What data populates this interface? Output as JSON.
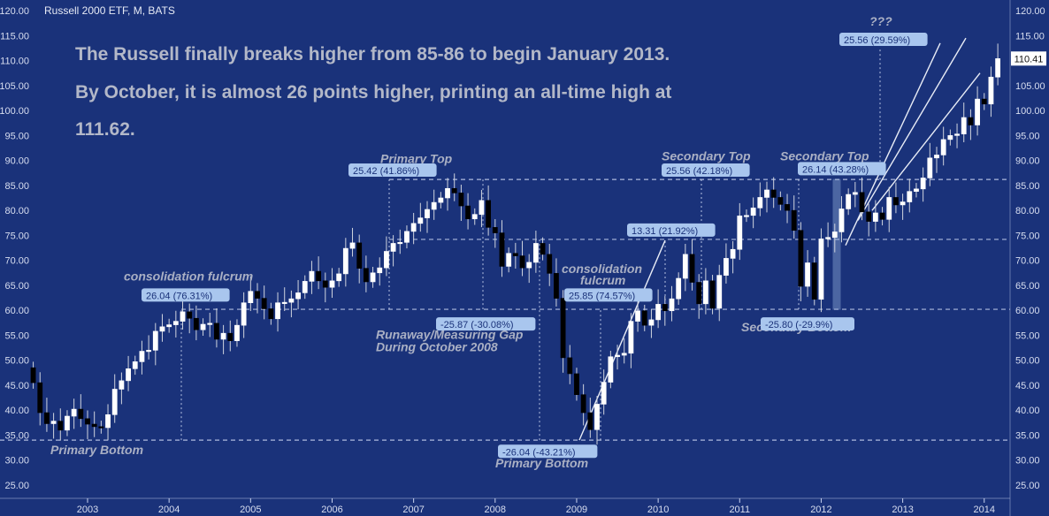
{
  "chart_data": {
    "type": "candlestick",
    "title": "Russell 2000 ETF, M, BATS",
    "headline": [
      "The Russell finally breaks higher from 85-86 to begin January 2013.",
      "By October, it is almost 26 points higher, printing an all-time high at",
      "111.62."
    ],
    "x_ticks": [
      "2003",
      "2004",
      "2005",
      "2006",
      "2007",
      "2008",
      "2009",
      "2010",
      "2011",
      "2012",
      "2013",
      "2014"
    ],
    "y_ticks": [
      "25.00",
      "30.00",
      "35.00",
      "40.00",
      "45.00",
      "50.00",
      "55.00",
      "60.00",
      "65.00",
      "70.00",
      "75.00",
      "80.00",
      "85.00",
      "90.00",
      "95.00",
      "100.00",
      "105.00",
      "110.00",
      "115.00",
      "120.00"
    ],
    "ylim": [
      22,
      120.5
    ],
    "last_price": "110.41",
    "horizontal_levels": [
      34,
      60.2,
      74.2,
      86.2
    ],
    "series": {
      "start": "2002-05",
      "closes": [
        45.5,
        39.5,
        37.3,
        37.8,
        36.0,
        38.8,
        40.2,
        38.3,
        37.2,
        36.7,
        36.5,
        39.1,
        44.2,
        45.9,
        48.3,
        49.7,
        51.8,
        52.0,
        55.8,
        56.7,
        57.1,
        57.8,
        59.7,
        58.4,
        56.1,
        57.2,
        57.4,
        54.2,
        55.4,
        53.9,
        57.0,
        61.5,
        63.8,
        62.4,
        60.3,
        58.3,
        61.5,
        61.6,
        62.3,
        63.5,
        65.8,
        67.8,
        65.9,
        64.6,
        65.9,
        67.3,
        72.4,
        73.5,
        68.4,
        65.7,
        67.5,
        68.5,
        71.8,
        73.4,
        73.6,
        75.8,
        77.4,
        78.5,
        80.2,
        81.6,
        82.5,
        84.4,
        83.5,
        80.9,
        78.3,
        79.2,
        82.0,
        76.6,
        75.5,
        68.8,
        71.4,
        70.9,
        68.5,
        69.6,
        73.4,
        71.2,
        67.4,
        62.4,
        50.5,
        47.3,
        43.1,
        39.5,
        36.1,
        41.2,
        45.6,
        50.7,
        51.0,
        51.4,
        57.8,
        59.9,
        57.0,
        58.1,
        61.2,
        59.9,
        62.3,
        66.4,
        71.2,
        65.6,
        61.3,
        65.9,
        60.4,
        67.0,
        70.4,
        72.2,
        78.9,
        79.0,
        80.5,
        82.6,
        84.1,
        82.6,
        81.2,
        80.0,
        76.0,
        64.8,
        69.5,
        62.2,
        74.3,
        74.6,
        75.7,
        80.3,
        83.2,
        83.6,
        79.7,
        77.8,
        79.5,
        78.2,
        82.6,
        81.1,
        81.7,
        83.8,
        84.3,
        86.5,
        90.5,
        91.1,
        94.2,
        95.0,
        95.3,
        98.6,
        97.1,
        102.3,
        101.3,
        106.7,
        110.4
      ]
    },
    "labels": {
      "primary_top": "Primary Top",
      "secondary_top_1": "Secondary Top",
      "secondary_top_2": "Secondary Top",
      "consolidation_1": "consolidation fulcrum",
      "consolidation_2a": "consolidation",
      "consolidation_2b": "fulcrum",
      "runaway_1": "Runaway/Measuring Gap",
      "runaway_2": "During October 2008",
      "secondary_bottom": "Secondary Bottom",
      "primary_bottom_1": "Primary Bottom",
      "primary_bottom_2": "Primary Bottom",
      "question": "???"
    },
    "measurements": [
      "26.04 (76.31%)",
      "25.42 (41.86%)",
      "-25.87 (-30.08%)",
      "25.85 (74.57%)",
      "-26.04 (-43.21%)",
      "13.31 (21.92%)",
      "25.56 (42.18%)",
      "26.14 (43.28%)",
      "-25.80 (-29.9%)",
      "25.56 (29.59%)"
    ]
  },
  "colors": {
    "background": "#1a327a",
    "up": "#ffffff",
    "down": "#000000",
    "annotation": "#aab0c4",
    "tag": "#a9c6ee",
    "level": "#c8d2ef"
  }
}
